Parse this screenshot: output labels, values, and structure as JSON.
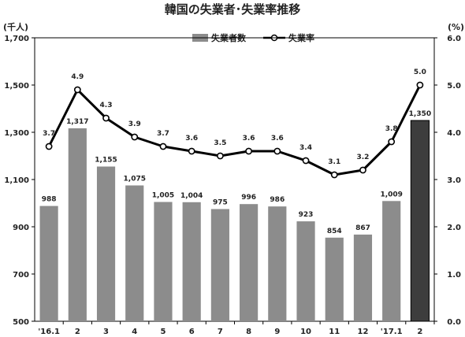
{
  "chart_data": {
    "type": "bar+line",
    "title": "韓国の失業者･失業率推移",
    "y_left_unit": "(千人)",
    "y_right_unit": "(%)",
    "categories": [
      "'16.1",
      "2",
      "3",
      "4",
      "5",
      "6",
      "7",
      "8",
      "9",
      "10",
      "11",
      "12",
      "'17.1",
      "2"
    ],
    "series": [
      {
        "name": "失業者数",
        "type": "bar",
        "axis": "left",
        "values": [
          988,
          1317,
          1155,
          1075,
          1005,
          1004,
          975,
          996,
          986,
          923,
          854,
          867,
          1009,
          1350
        ],
        "value_labels": [
          "988",
          "1,317",
          "1,155",
          "1,075",
          "1,005",
          "1,004",
          "975",
          "996",
          "986",
          "923",
          "854",
          "867",
          "1,009",
          "1,350"
        ],
        "color": "#8c8c8c",
        "highlight_color": "#3d3d3d",
        "highlight_index": 13
      },
      {
        "name": "失業率",
        "type": "line",
        "axis": "right",
        "values": [
          3.7,
          4.9,
          4.3,
          3.9,
          3.7,
          3.6,
          3.5,
          3.6,
          3.6,
          3.4,
          3.1,
          3.2,
          3.8,
          5.0
        ],
        "value_labels": [
          "3.7",
          "4.9",
          "4.3",
          "3.9",
          "3.7",
          "3.6",
          "3.5",
          "3.6",
          "3.6",
          "3.4",
          "3.1",
          "3.2",
          "3.8",
          "5.0"
        ],
        "color": "#000000"
      }
    ],
    "y_left": {
      "min": 500,
      "max": 1700,
      "ticks": [
        500,
        700,
        900,
        1100,
        1300,
        1500,
        1700
      ],
      "tick_labels": [
        "500",
        "700",
        "900",
        "1,100",
        "1,300",
        "1,500",
        "1,700"
      ]
    },
    "y_right": {
      "min": 0,
      "max": 6,
      "ticks": [
        0,
        1,
        2,
        3,
        4,
        5,
        6
      ],
      "tick_labels": [
        "0.0",
        "1.0",
        "2.0",
        "3.0",
        "4.0",
        "5.0",
        "6.0"
      ]
    },
    "grid": false,
    "legend_position": "top-center"
  }
}
